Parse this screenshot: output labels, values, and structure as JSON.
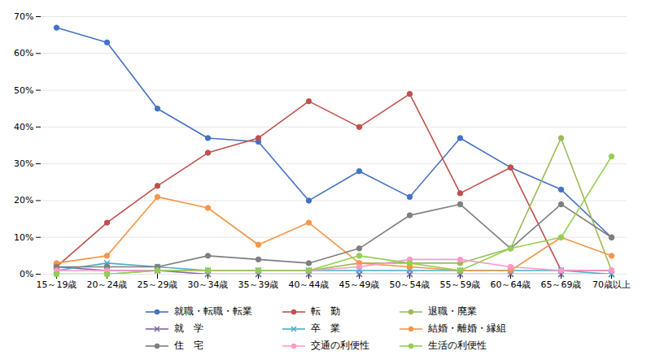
{
  "chart_data": {
    "type": "line",
    "categories": [
      "15～19歳",
      "20～24歳",
      "25～29歳",
      "30～34歳",
      "35～39歳",
      "40～44歳",
      "45～49歳",
      "50～54歳",
      "55～59歳",
      "60～64歳",
      "65～69歳",
      "70歳以上"
    ],
    "series": [
      {
        "name": "就職・転職・転業",
        "color": "#4472C4",
        "marker": "circle",
        "line_style": "solid",
        "values": [
          0.67,
          0.63,
          0.45,
          0.37,
          0.36,
          0.2,
          0.28,
          0.21,
          0.37,
          0.29,
          0.23,
          0.1
        ]
      },
      {
        "name": "転　勤",
        "color": "#C0504D",
        "marker": "circle",
        "line_style": "solid",
        "values": [
          0.02,
          0.14,
          0.24,
          0.33,
          0.37,
          0.47,
          0.4,
          0.49,
          0.22,
          0.29,
          0.01,
          0.01
        ]
      },
      {
        "name": "退職・廃業",
        "color": "#9BBB59",
        "marker": "circle",
        "line_style": "solid",
        "values": [
          0.0,
          0.0,
          0.01,
          0.01,
          0.01,
          0.01,
          0.03,
          0.03,
          0.03,
          0.07,
          0.37,
          0.01
        ]
      },
      {
        "name": "就　学",
        "color": "#8064A2",
        "marker": "x",
        "line_style": "solid",
        "values": [
          0.02,
          0.01,
          0.01,
          0.0,
          0.0,
          0.0,
          0.0,
          0.0,
          0.0,
          0.0,
          0.0,
          0.0
        ]
      },
      {
        "name": "卒　業",
        "color": "#4BACC6",
        "marker": "x",
        "line_style": "solid",
        "values": [
          0.01,
          0.03,
          0.02,
          0.01,
          0.01,
          0.01,
          0.01,
          0.01,
          0.01,
          0.01,
          0.01,
          0.0
        ]
      },
      {
        "name": "結婚・離婚・縁組",
        "color": "#F79646",
        "marker": "circle",
        "line_style": "solid",
        "values": [
          0.03,
          0.05,
          0.21,
          0.18,
          0.08,
          0.14,
          0.03,
          0.02,
          0.01,
          0.01,
          0.1,
          0.05
        ]
      },
      {
        "name": "住　宅",
        "color": "#7F7F7F",
        "marker": "circle",
        "line_style": "solid",
        "values": [
          0.02,
          0.02,
          0.02,
          0.05,
          0.04,
          0.03,
          0.07,
          0.16,
          0.19,
          0.07,
          0.19,
          0.1
        ]
      },
      {
        "name": "交通の利便性",
        "color": "#FF99CC",
        "marker": "circle",
        "line_style": "solid",
        "values": [
          0.01,
          0.01,
          0.01,
          0.01,
          0.01,
          0.01,
          0.02,
          0.04,
          0.04,
          0.02,
          0.01,
          0.01
        ]
      },
      {
        "name": "生活の利便性",
        "color": "#92D050",
        "marker": "circle",
        "line_style": "solid",
        "values": [
          0.0,
          0.0,
          0.01,
          0.01,
          0.01,
          0.01,
          0.05,
          0.03,
          0.01,
          0.07,
          0.1,
          0.32
        ]
      }
    ],
    "ylim": [
      0.0,
      0.7
    ],
    "yticks": [
      {
        "value": 0.0,
        "label": "0%"
      },
      {
        "value": 0.1,
        "label": "10%"
      },
      {
        "value": 0.2,
        "label": "20%"
      },
      {
        "value": 0.3,
        "label": "30%"
      },
      {
        "value": 0.4,
        "label": "40%"
      },
      {
        "value": 0.5,
        "label": "50%"
      },
      {
        "value": 0.6,
        "label": "60%"
      },
      {
        "value": 0.7,
        "label": "70%"
      }
    ],
    "grid": true,
    "legend": "bottom"
  }
}
